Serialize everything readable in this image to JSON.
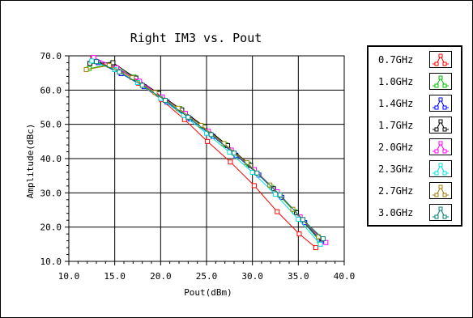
{
  "chart_data": {
    "type": "line",
    "title": "Right IM3 vs. Pout",
    "xlabel": "Pout(dBm)",
    "ylabel": "Amplitude(dBc)",
    "xlim": [
      10.0,
      40.0
    ],
    "ylim": [
      10.0,
      70.0
    ],
    "xticks": [
      "10.0",
      "15.0",
      "20.0",
      "25.0",
      "30.0",
      "35.0",
      "40.0"
    ],
    "yticks": [
      "10.0",
      "20.0",
      "30.0",
      "40.0",
      "50.0",
      "60.0",
      "70.0"
    ],
    "grid": true,
    "legend_position": "right",
    "series": [
      {
        "name": "0.7GHz",
        "color": "#ff0000",
        "x": [
          12.6,
          15.0,
          17.6,
          20.1,
          22.6,
          25.1,
          27.6,
          30.2,
          32.7,
          35.1,
          36.9
        ],
        "y": [
          69.2,
          66.0,
          62.0,
          57.2,
          51.4,
          45.0,
          39.0,
          32.1,
          24.5,
          18.0,
          14.0
        ]
      },
      {
        "name": "1.0GHz",
        "color": "#00c000",
        "x": [
          12.2,
          14.6,
          17.1,
          19.6,
          22.1,
          24.6,
          27.1,
          29.6,
          32.1,
          34.6,
          37.3
        ],
        "y": [
          66.3,
          67.5,
          63.8,
          59.2,
          54.6,
          49.5,
          44.0,
          38.4,
          31.6,
          24.5,
          16.0
        ]
      },
      {
        "name": "1.4GHz",
        "color": "#0000ff",
        "x": [
          13.2,
          15.7,
          18.2,
          20.7,
          23.2,
          25.7,
          28.2,
          30.7,
          33.2,
          35.7,
          37.5
        ],
        "y": [
          68.0,
          64.8,
          61.0,
          56.5,
          51.6,
          46.5,
          41.0,
          35.2,
          28.7,
          21.3,
          15.8
        ]
      },
      {
        "name": "1.7GHz",
        "color": "#000000",
        "x": [
          12.3,
          14.8,
          17.3,
          19.8,
          22.3,
          24.8,
          27.3,
          29.8,
          32.3,
          34.8,
          37.6
        ],
        "y": [
          67.8,
          68.0,
          63.5,
          59.0,
          54.2,
          49.3,
          43.8,
          38.0,
          31.2,
          24.2,
          16.5
        ]
      },
      {
        "name": "2.0GHz",
        "color": "#ff00ff",
        "x": [
          12.7,
          15.2,
          17.7,
          20.2,
          22.7,
          25.2,
          27.7,
          30.2,
          32.7,
          35.2,
          38.0
        ],
        "y": [
          69.5,
          66.5,
          62.6,
          58.0,
          53.2,
          48.0,
          42.5,
          36.8,
          30.3,
          23.0,
          15.5
        ]
      },
      {
        "name": "2.3GHz",
        "color": "#00e0e0",
        "x": [
          12.5,
          15.0,
          17.5,
          20.0,
          22.5,
          25.0,
          27.5,
          30.0,
          32.5,
          35.0,
          37.4
        ],
        "y": [
          68.5,
          66.0,
          62.2,
          57.6,
          52.6,
          47.4,
          41.9,
          36.0,
          29.6,
          22.3,
          15.0
        ]
      },
      {
        "name": "2.7GHz",
        "color": "#a08000",
        "x": [
          11.9,
          14.4,
          16.9,
          19.4,
          21.9,
          24.4,
          26.9,
          29.4,
          31.9,
          34.4,
          37.2
        ],
        "y": [
          66.0,
          67.2,
          63.6,
          59.3,
          54.7,
          49.7,
          44.4,
          38.8,
          32.3,
          25.2,
          17.2
        ]
      },
      {
        "name": "3.0GHz",
        "color": "#008070",
        "x": [
          13.0,
          15.5,
          18.0,
          20.5,
          23.0,
          25.5,
          28.0,
          30.5,
          33.0,
          35.5,
          37.7
        ],
        "y": [
          68.3,
          65.3,
          61.4,
          57.0,
          52.1,
          47.0,
          41.6,
          35.8,
          29.4,
          22.2,
          16.6
        ]
      }
    ]
  }
}
